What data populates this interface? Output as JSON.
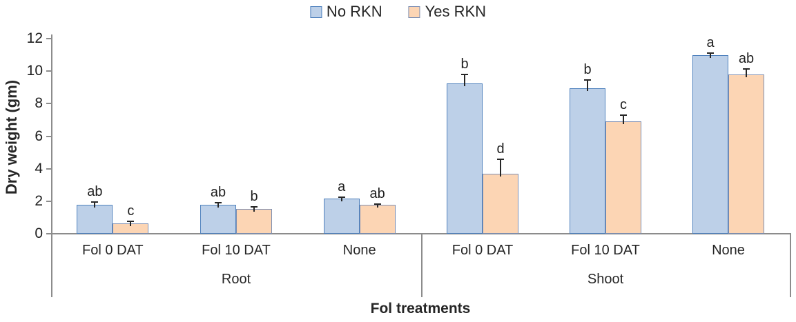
{
  "chart_data": {
    "type": "bar",
    "title": "",
    "xlabel": "Fol treatments",
    "ylabel": "Dry weight (gm)",
    "ylim": [
      0,
      12
    ],
    "yticks": [
      0,
      2,
      4,
      6,
      8,
      10,
      12
    ],
    "grid": false,
    "legend_position": "top-center",
    "categories": [
      "Fol 0 DAT",
      "Fol 10 DAT",
      "None",
      "Fol 0 DAT",
      "Fol 10 DAT",
      "None"
    ],
    "category_groups": [
      {
        "label": "Root",
        "start": 0,
        "end": 3
      },
      {
        "label": "Shoot",
        "start": 3,
        "end": 6
      }
    ],
    "series": [
      {
        "name": "No RKN",
        "fill": "#bdd0e8",
        "border": "#4f81bd",
        "values": [
          1.75,
          1.75,
          2.1,
          9.2,
          8.9,
          10.95
        ],
        "errors": [
          0.2,
          0.15,
          0.15,
          0.6,
          0.55,
          0.15
        ],
        "letters": [
          "ab",
          "ab",
          "a",
          "b",
          "b",
          "a"
        ]
      },
      {
        "name": "Yes RKN",
        "fill": "#fcd5b4",
        "border": "#7b8eb3",
        "values": [
          0.6,
          1.5,
          1.75,
          3.65,
          6.85,
          9.75
        ],
        "errors": [
          0.18,
          0.15,
          0.08,
          0.95,
          0.45,
          0.4
        ],
        "letters": [
          "c",
          "b",
          "ab",
          "d",
          "c",
          "ab"
        ]
      }
    ]
  },
  "colors": {
    "axis_line": "#8c8c8c",
    "error_bar": "#262626",
    "text": "#262626"
  }
}
